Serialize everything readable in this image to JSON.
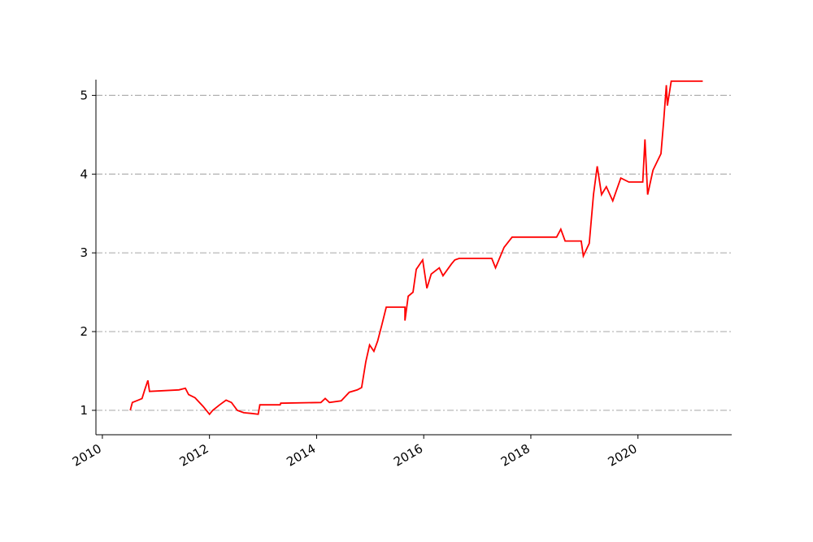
{
  "chart_data": {
    "type": "line",
    "x": [
      2010.52,
      2010.56,
      2010.67,
      2010.74,
      2010.79,
      2010.85,
      2010.88,
      2011.43,
      2011.55,
      2011.61,
      2011.73,
      2011.88,
      2012.0,
      2012.06,
      2012.19,
      2012.31,
      2012.41,
      2012.52,
      2012.64,
      2012.79,
      2012.91,
      2012.94,
      2013.32,
      2013.33,
      2014.08,
      2014.16,
      2014.24,
      2014.46,
      2014.61,
      2014.76,
      2014.84,
      2014.92,
      2014.99,
      2015.07,
      2015.14,
      2015.22,
      2015.3,
      2015.65,
      2015.65,
      2015.71,
      2015.8,
      2015.86,
      2015.98,
      2016.06,
      2016.14,
      2016.29,
      2016.36,
      2016.52,
      2016.58,
      2016.66,
      2017.27,
      2017.34,
      2017.5,
      2017.65,
      2018.48,
      2018.56,
      2018.64,
      2018.94,
      2018.98,
      2019.09,
      2019.17,
      2019.24,
      2019.32,
      2019.41,
      2019.53,
      2019.68,
      2019.83,
      2020.09,
      2020.13,
      2020.18,
      2020.28,
      2020.43,
      2020.48,
      2020.53,
      2020.55,
      2020.62,
      2021.21
    ],
    "series": [
      {
        "color": "#ff0000",
        "values": [
          1.0,
          1.1,
          1.13,
          1.15,
          1.26,
          1.38,
          1.24,
          1.26,
          1.28,
          1.2,
          1.16,
          1.05,
          0.95,
          1.0,
          1.07,
          1.13,
          1.1,
          1.0,
          0.97,
          0.96,
          0.95,
          1.07,
          1.07,
          1.09,
          1.1,
          1.15,
          1.1,
          1.12,
          1.23,
          1.26,
          1.29,
          1.62,
          1.83,
          1.75,
          1.88,
          2.09,
          2.31,
          2.31,
          2.14,
          2.45,
          2.5,
          2.79,
          2.91,
          2.55,
          2.73,
          2.81,
          2.71,
          2.86,
          2.91,
          2.93,
          2.93,
          2.81,
          3.07,
          3.2,
          3.2,
          3.3,
          3.15,
          3.15,
          2.96,
          3.12,
          3.74,
          4.1,
          3.74,
          3.84,
          3.66,
          3.95,
          3.9,
          3.9,
          4.44,
          3.74,
          4.05,
          4.26,
          4.67,
          5.13,
          4.87,
          5.18,
          5.18
        ]
      }
    ],
    "xlim": [
      2009.88,
      2021.75
    ],
    "xticks": [
      2010,
      2012,
      2014,
      2016,
      2018,
      2020
    ],
    "ylim": [
      0.69,
      5.2
    ],
    "yticks": [
      1,
      2,
      3,
      4,
      5
    ],
    "grid": true
  }
}
